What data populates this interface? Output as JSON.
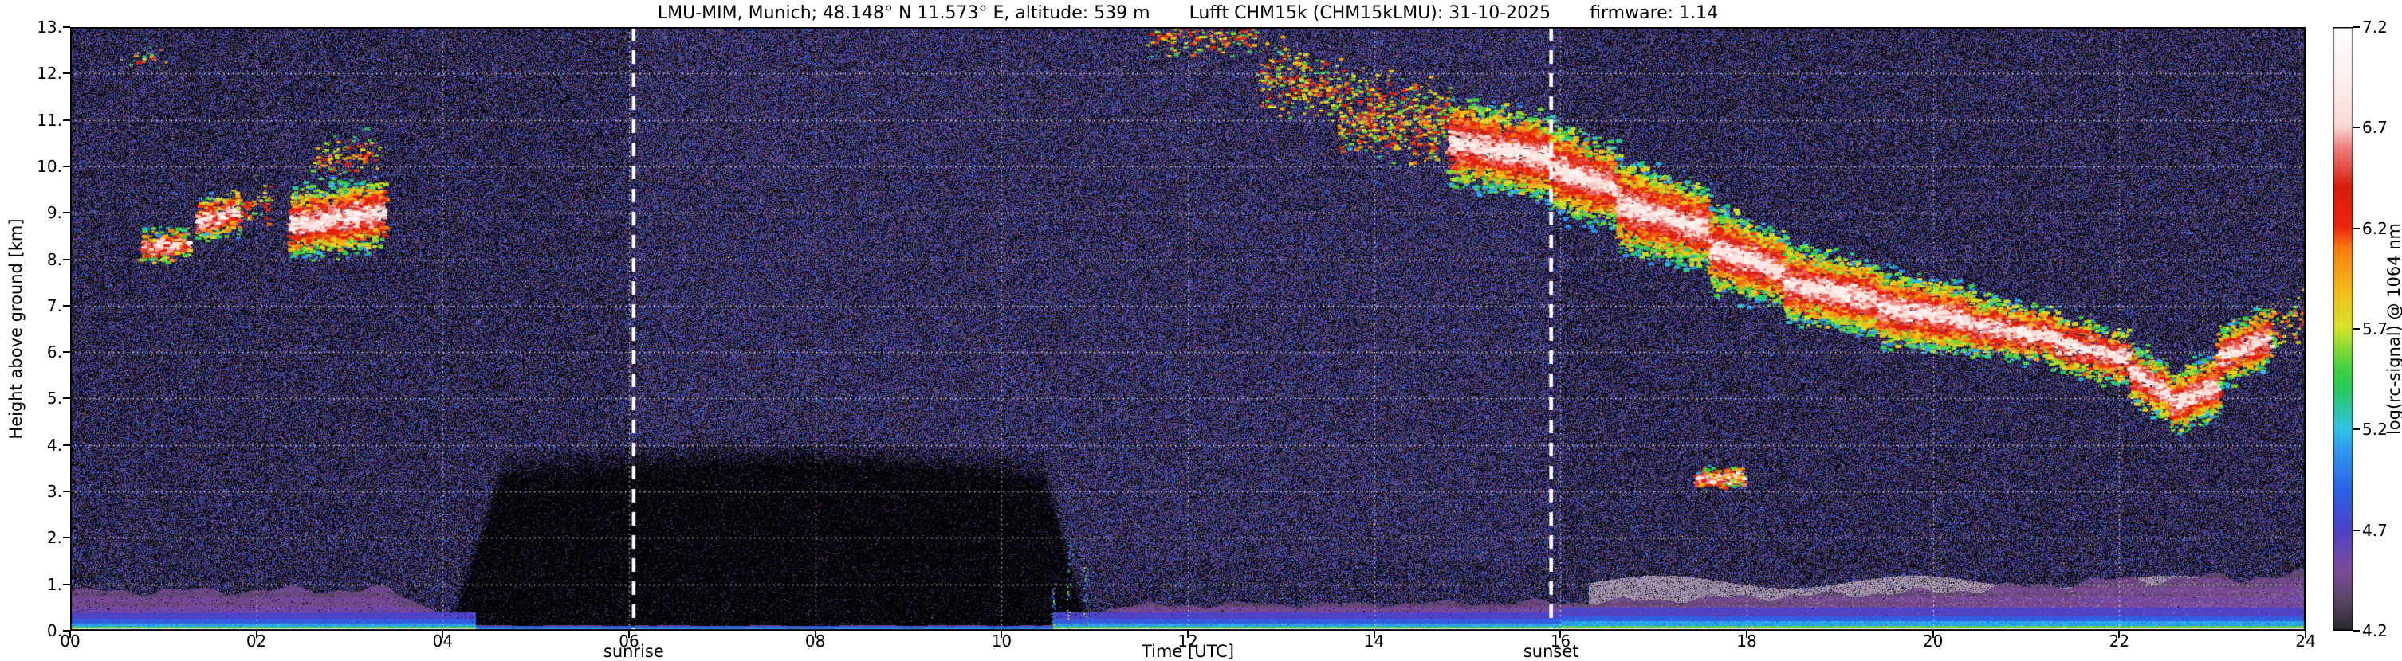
{
  "chart_data": {
    "type": "heatmap",
    "title": "LMU-MIM, Munich; 48.148° N 11.573° E, altitude: 539 m    Lufft CHM15k (CHM15kLMU): 31-10-2025    firmware: 1.14",
    "title_parts": [
      "LMU-MIM, Munich; 48.148° N 11.573° E, altitude: 539 m",
      "Lufft CHM15k (CHM15kLMU): 31-10-2025",
      "firmware: 1.14"
    ],
    "xlabel": "Time [UTC]",
    "ylabel": "Height above ground [km]",
    "xlim": [
      0,
      24
    ],
    "ylim": [
      0,
      13
    ],
    "xticks": [
      "00",
      "02",
      "04",
      "06",
      "08",
      "10",
      "12",
      "14",
      "16",
      "18",
      "20",
      "22",
      "24"
    ],
    "yticks": [
      "0.",
      "1.",
      "2.",
      "3.",
      "4.",
      "5.",
      "6.",
      "7.",
      "8.",
      "9.",
      "10.",
      "11.",
      "12.",
      "13."
    ],
    "grid": {
      "style": "dotted",
      "color": "#ffffff",
      "x_interval_hours": 2,
      "y_interval_km": 1
    },
    "colorbar": {
      "label": "log(rc-signal) @ 1064 nm",
      "min": 4.2,
      "max": 7.2,
      "ticks": [
        "4.2",
        "4.7",
        "5.2",
        "5.7",
        "6.2",
        "6.7",
        "7.2"
      ],
      "stops": [
        [
          0.0,
          "#28282c"
        ],
        [
          0.05,
          "#5c4668"
        ],
        [
          0.1,
          "#7d4a9e"
        ],
        [
          0.1667,
          "#4b41c8"
        ],
        [
          0.2333,
          "#2b63e8"
        ],
        [
          0.3,
          "#2e9df0"
        ],
        [
          0.3333,
          "#2fc4e6"
        ],
        [
          0.4,
          "#28c957"
        ],
        [
          0.4333,
          "#3fd23f"
        ],
        [
          0.5,
          "#d8e428"
        ],
        [
          0.5667,
          "#f5b718"
        ],
        [
          0.6333,
          "#f97a0e"
        ],
        [
          0.6667,
          "#ef2410"
        ],
        [
          0.7333,
          "#d81c0a"
        ],
        [
          0.8,
          "#f2807f"
        ],
        [
          0.8333,
          "#fbd8d3"
        ],
        [
          0.9,
          "#ffeeea"
        ],
        [
          1.0,
          "#ffffff"
        ]
      ]
    },
    "annotations": [
      {
        "label": "sunrise",
        "time_utc": 6.05,
        "line_style": "dashed",
        "line_color": "#ffffff"
      },
      {
        "label": "sunset",
        "time_utc": 15.9,
        "line_style": "dashed",
        "line_color": "#ffffff"
      }
    ],
    "layers": {
      "noise_background": {
        "base_value": 4.25,
        "speckle_probability": 0.58,
        "day_speckle_probability": 0.66,
        "bright_speck_probability": 0.005,
        "day_interval_utc": [
          6,
          16
        ]
      },
      "dark_low_signal_region": {
        "t": [
          4.05,
          10.95
        ],
        "top_km": 3.8
      },
      "boundary_layer_aerosol": {
        "top_km_profile": [
          [
            0,
            0.85
          ],
          [
            3.4,
            0.9
          ],
          [
            4.3,
            0.12
          ],
          [
            10.5,
            0.12
          ],
          [
            11.3,
            0.55
          ],
          [
            16,
            0.62
          ],
          [
            18,
            0.72
          ],
          [
            20,
            0.85
          ],
          [
            22,
            1.1
          ],
          [
            24,
            1.2
          ]
        ],
        "value_range": [
          4.4,
          4.65
        ]
      },
      "haze_band": {
        "t": [
          16.3,
          24
        ],
        "top_km": 1.15,
        "color": "#a393a8"
      },
      "surface_layers": [
        {
          "name": "white-surface-line",
          "top_km": 0.05,
          "value": 6.9
        },
        {
          "name": "green-line",
          "top_km": 0.09,
          "value": 5.5
        },
        {
          "name": "cyan-line",
          "top_km": 0.17,
          "value": 5.12
        },
        {
          "name": "blue-line",
          "top_km": 0.26,
          "value": 4.88
        },
        {
          "name": "violet-band",
          "top_km": 0.4,
          "value": 4.7
        }
      ],
      "plumes": [
        {
          "t": 10.55,
          "top_km": 1.0
        },
        {
          "t": 10.72,
          "top_km": 1.9
        },
        {
          "t": 10.9,
          "top_km": 1.4
        }
      ],
      "clouds": [
        {
          "t": [
            0.55,
            1.0
          ],
          "base": [
            12.1,
            12.15
          ],
          "top": [
            12.55,
            12.6
          ],
          "density": 0.18,
          "style": "cirrus"
        },
        {
          "t": [
            0.75,
            1.25
          ],
          "base": [
            7.9,
            8.0
          ],
          "top": [
            8.65,
            8.7
          ],
          "density": 0.5,
          "style": "dense"
        },
        {
          "t": [
            1.35,
            1.8
          ],
          "base": [
            8.35,
            8.55
          ],
          "top": [
            9.3,
            9.6
          ],
          "density": 0.5,
          "style": "dense"
        },
        {
          "t": [
            1.8,
            2.15
          ],
          "base": [
            8.7,
            8.8
          ],
          "top": [
            9.5,
            9.7
          ],
          "density": 0.3,
          "style": "cirrus"
        },
        {
          "t": [
            2.35,
            3.35
          ],
          "base": [
            7.95,
            8.15
          ],
          "top": [
            9.6,
            9.9
          ],
          "density": 0.55,
          "style": "dense"
        },
        {
          "t": [
            2.6,
            3.3
          ],
          "base": [
            9.6,
            9.9
          ],
          "top": [
            10.6,
            10.8
          ],
          "density": 0.3,
          "style": "cirrus"
        },
        {
          "t": [
            11.55,
            12.75
          ],
          "base": [
            12.4,
            12.3
          ],
          "top": [
            13.3,
            13.25
          ],
          "density": 0.3,
          "style": "cirrus"
        },
        {
          "t": [
            12.75,
            13.6
          ],
          "base": [
            11.1,
            10.8
          ],
          "top": [
            12.9,
            12.4
          ],
          "density": 0.35,
          "style": "cirrus"
        },
        {
          "t": [
            13.6,
            14.8
          ],
          "base": [
            10.2,
            9.9
          ],
          "top": [
            12.3,
            11.8
          ],
          "density": 0.45,
          "style": "cirrus"
        },
        {
          "t": [
            14.8,
            15.9
          ],
          "base": [
            9.5,
            9.2
          ],
          "top": [
            11.6,
            11.2
          ],
          "density": 0.55,
          "style": "dense"
        },
        {
          "t": [
            15.9,
            16.6
          ],
          "base": [
            8.9,
            8.6
          ],
          "top": [
            11.1,
            10.5
          ],
          "density": 0.65,
          "style": "dense"
        },
        {
          "t": [
            16.6,
            17.6
          ],
          "base": [
            8.1,
            7.7
          ],
          "top": [
            10.3,
            9.6
          ],
          "density": 0.7,
          "style": "dense"
        },
        {
          "t": [
            17.6,
            18.4
          ],
          "base": [
            7.2,
            6.9
          ],
          "top": [
            9.3,
            8.6
          ],
          "density": 0.75,
          "style": "dense"
        },
        {
          "t": [
            18.4,
            19.4
          ],
          "base": [
            6.6,
            6.3
          ],
          "top": [
            8.4,
            8.0
          ],
          "density": 0.8,
          "style": "dense"
        },
        {
          "t": [
            19.4,
            20.4
          ],
          "base": [
            6.1,
            5.9
          ],
          "top": [
            7.9,
            7.5
          ],
          "density": 0.8,
          "style": "dense"
        },
        {
          "t": [
            20.4,
            21.3
          ],
          "base": [
            5.9,
            5.7
          ],
          "top": [
            7.3,
            7.0
          ],
          "density": 0.6,
          "style": "dense"
        },
        {
          "t": [
            21.3,
            22.1
          ],
          "base": [
            5.5,
            5.2
          ],
          "top": [
            7.0,
            6.5
          ],
          "density": 0.45,
          "style": "dense"
        },
        {
          "t": [
            22.1,
            22.55
          ],
          "base": [
            4.9,
            4.4
          ],
          "top": [
            6.3,
            5.7
          ],
          "density": 0.6,
          "style": "dense"
        },
        {
          "t": [
            22.55,
            23.05
          ],
          "base": [
            4.2,
            4.6
          ],
          "top": [
            5.6,
            6.1
          ],
          "density": 0.8,
          "style": "dense"
        },
        {
          "t": [
            23.05,
            23.6
          ],
          "base": [
            5.2,
            5.6
          ],
          "top": [
            6.6,
            7.1
          ],
          "density": 0.5,
          "style": "dense"
        },
        {
          "t": [
            23.6,
            24.0
          ],
          "base": [
            5.9,
            6.3
          ],
          "top": [
            7.1,
            7.5
          ],
          "density": 0.3,
          "style": "cirrus"
        },
        {
          "t": [
            17.45,
            17.95
          ],
          "base": [
            3.1,
            3.15
          ],
          "top": [
            3.45,
            3.5
          ],
          "density": 1.0,
          "style": "dense"
        }
      ]
    }
  }
}
